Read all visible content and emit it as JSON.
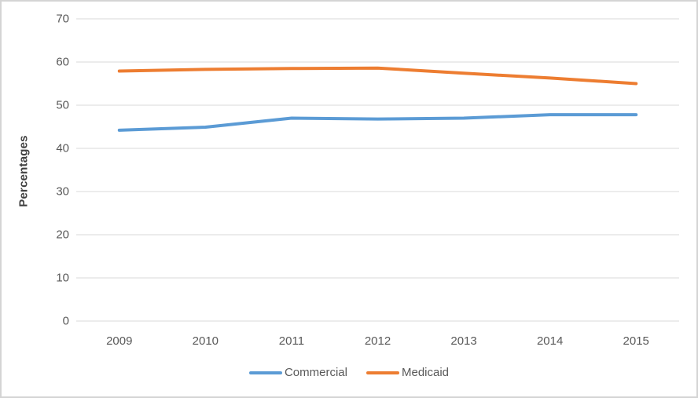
{
  "chart_data": {
    "type": "line",
    "categories": [
      "2009",
      "2010",
      "2011",
      "2012",
      "2013",
      "2014",
      "2015"
    ],
    "series": [
      {
        "name": "Commercial",
        "color": "#5B9BD5",
        "values": [
          44.2,
          44.9,
          47.0,
          46.8,
          47.0,
          47.8,
          47.8
        ]
      },
      {
        "name": "Medicaid",
        "color": "#ED7D31",
        "values": [
          57.9,
          58.3,
          58.5,
          58.6,
          57.4,
          56.3,
          55.0
        ]
      }
    ],
    "title": "",
    "xlabel": "",
    "ylabel": "Percentages",
    "ylim": [
      0,
      70
    ],
    "ytick_step": 10,
    "ytick_labels": [
      "70",
      "60",
      "50",
      "40",
      "30",
      "20",
      "10",
      "0"
    ],
    "grid": "horizontal",
    "legend_position": "bottom"
  },
  "colors": {
    "gridline": "#D9D9D9",
    "tick_text": "#595959",
    "axis_title_text": "#404040",
    "chart_border": "#D4D4D4",
    "background": "#FFFFFF"
  }
}
